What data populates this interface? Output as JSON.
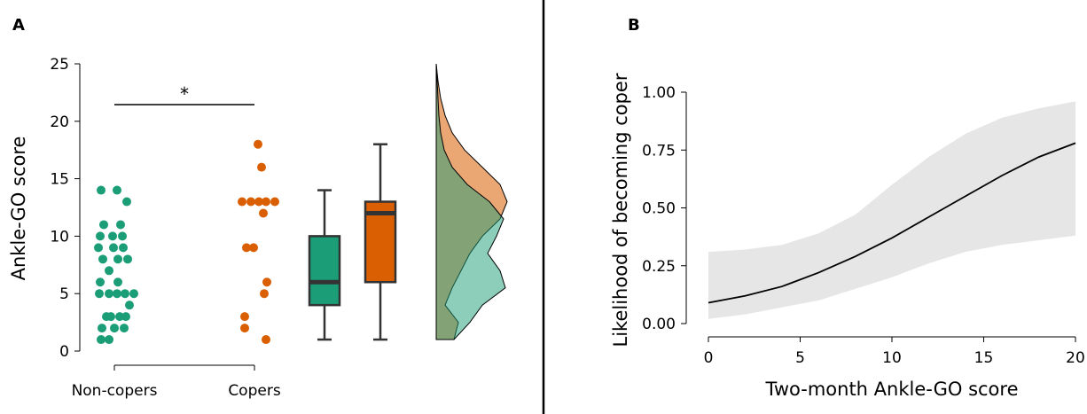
{
  "panels": {
    "a": {
      "letter": "A"
    },
    "b": {
      "letter": "B"
    }
  },
  "chart_data": [
    {
      "panel": "A",
      "type": "scatter",
      "ylabel": "Ankle-GO score",
      "ylim": [
        0,
        25
      ],
      "yticks": [
        "0",
        "5",
        "10",
        "15",
        "20",
        "25"
      ],
      "categories": [
        "Non-copers",
        "Copers"
      ],
      "significance": "*",
      "colors": {
        "Non-copers": "#1b9e77",
        "Copers": "#d95f02"
      },
      "series": [
        {
          "name": "Non-copers",
          "values": [
            14,
            14,
            13,
            11,
            11,
            10,
            10,
            10,
            9,
            9,
            9,
            8,
            8,
            8,
            7,
            6,
            6,
            5,
            5,
            5,
            5,
            5,
            4,
            3,
            3,
            3,
            3,
            2,
            2,
            2,
            1,
            1
          ]
        },
        {
          "name": "Copers",
          "values": [
            18,
            16,
            13,
            13,
            13,
            13,
            13,
            12,
            9,
            9,
            6,
            5,
            3,
            2,
            1
          ]
        }
      ],
      "boxplots": [
        {
          "group": "Non-copers",
          "min": 1,
          "q1": 4,
          "median": 6,
          "q3": 10,
          "max": 14
        },
        {
          "group": "Copers",
          "min": 1,
          "q1": 6,
          "median": 12,
          "q3": 13,
          "max": 18
        }
      ],
      "density": {
        "grid": [
          1,
          2.5,
          4,
          5.5,
          7,
          8.5,
          10,
          11.5,
          13,
          14.5,
          16,
          17.5,
          19,
          20.5,
          22,
          23.5,
          25
        ],
        "Non-copers": [
          0,
          0.18,
          0.52,
          0.78,
          0.72,
          0.58,
          0.68,
          0.76,
          0.6,
          0.35,
          0.18,
          0.09,
          0.05,
          0.03,
          0.02,
          0.01,
          0
        ],
        "Copers": [
          0,
          0.05,
          0.1,
          0.18,
          0.28,
          0.38,
          0.52,
          0.72,
          0.8,
          0.72,
          0.52,
          0.32,
          0.18,
          0.1,
          0.05,
          0.02,
          0
        ]
      }
    },
    {
      "panel": "B",
      "type": "line",
      "xlabel": "Two-month Ankle-GO score",
      "ylabel": "Likelihood of becoming coper",
      "xlim": [
        0,
        20
      ],
      "ylim": [
        0,
        1
      ],
      "xticks": [
        "0",
        "5",
        "10",
        "15",
        "20"
      ],
      "yticks": [
        "0.00",
        "0.25",
        "0.50",
        "0.75",
        "1.00"
      ],
      "series": [
        {
          "name": "",
          "x": [
            0,
            2,
            4,
            6,
            8,
            10,
            12,
            14,
            16,
            18,
            20
          ],
          "y": [
            0.09,
            0.12,
            0.16,
            0.22,
            0.29,
            0.37,
            0.46,
            0.55,
            0.64,
            0.72,
            0.78
          ],
          "lower": [
            0.02,
            0.04,
            0.07,
            0.1,
            0.15,
            0.2,
            0.26,
            0.31,
            0.34,
            0.36,
            0.38
          ],
          "upper": [
            0.31,
            0.32,
            0.34,
            0.39,
            0.47,
            0.6,
            0.72,
            0.82,
            0.89,
            0.93,
            0.96
          ]
        }
      ]
    }
  ]
}
